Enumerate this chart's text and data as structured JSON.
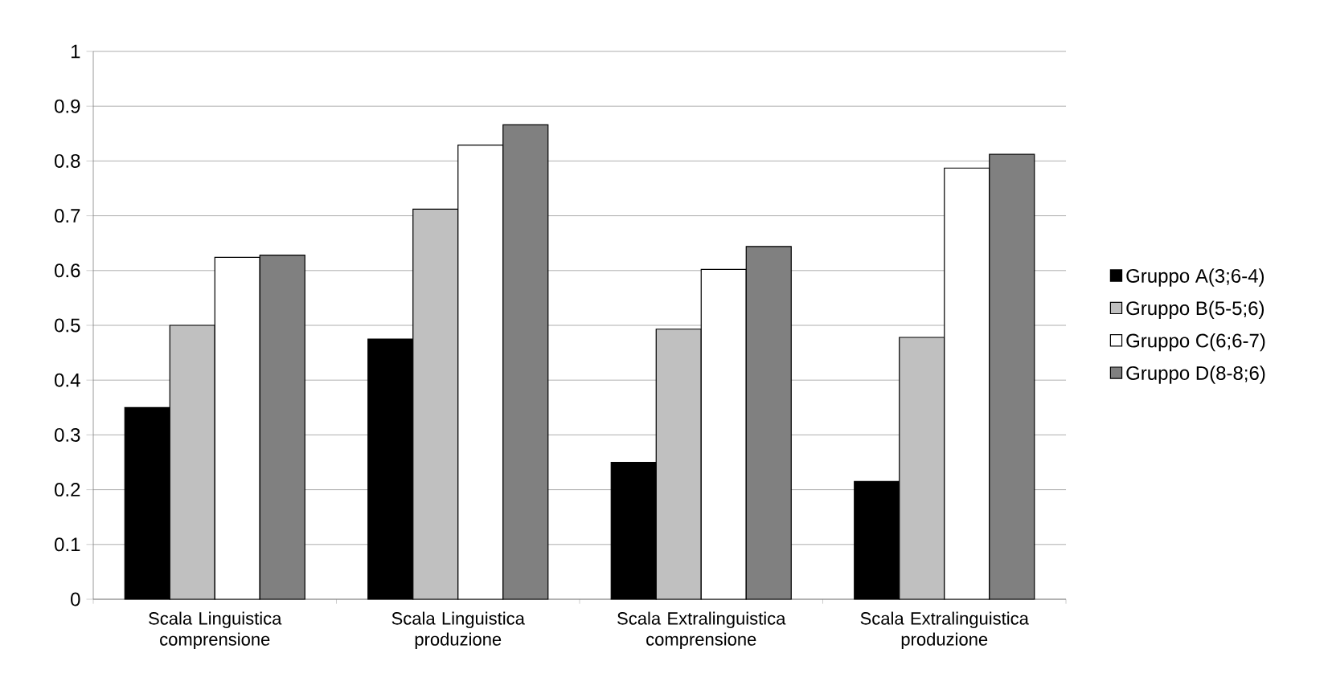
{
  "chart_data": {
    "type": "bar",
    "categories": [
      "Scala Linguistica comprensione",
      "Scala Linguistica produzione",
      "Scala Extralinguistica comprensione",
      "Scala Extralinguistica produzione"
    ],
    "series": [
      {
        "name": "Gruppo A(3;6-4)",
        "color": "#000000",
        "values": [
          0.35,
          0.475,
          0.25,
          0.215
        ]
      },
      {
        "name": "Gruppo B(5-5;6)",
        "color": "#c0c0c0",
        "values": [
          0.5,
          0.712,
          0.493,
          0.478
        ]
      },
      {
        "name": "Gruppo C(6;6-7)",
        "color": "#ffffff",
        "values": [
          0.624,
          0.829,
          0.602,
          0.787
        ]
      },
      {
        "name": "Gruppo D(8-8;6)",
        "color": "#808080",
        "values": [
          0.628,
          0.866,
          0.644,
          0.812
        ]
      }
    ],
    "ylim": [
      0,
      1
    ],
    "yticks": [
      0,
      0.1,
      0.2,
      0.3,
      0.4,
      0.5,
      0.6,
      0.7,
      0.8,
      0.9,
      1
    ],
    "grid": "y",
    "legend": "right"
  }
}
